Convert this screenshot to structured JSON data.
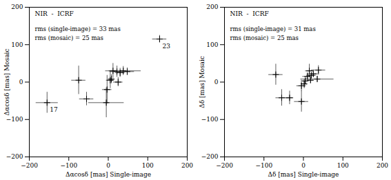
{
  "chart_data": [
    {
      "type": "scatter",
      "title": "NIR  -  ICRF",
      "annotations": [
        "rms (single-image) = 33 mas",
        "rms (mosaic) = 25 mas"
      ],
      "xlabel": "Δαcosδ [mas] Single-image",
      "ylabel": "Δαcosδ [mas] Mosaic",
      "xlim": [
        -200,
        200
      ],
      "ylim": [
        -200,
        200
      ],
      "xticks": [
        -200,
        -100,
        0,
        100,
        200
      ],
      "yticks": [
        -200,
        -100,
        0,
        100,
        200
      ],
      "x": [
        -155,
        130,
        -75,
        -55,
        -5,
        -3,
        5,
        12,
        22,
        30,
        38,
        48,
        25,
        8
      ],
      "y": [
        -55,
        115,
        5,
        -45,
        -55,
        -20,
        5,
        30,
        28,
        25,
        30,
        28,
        0,
        8
      ],
      "xerr": [
        28,
        18,
        18,
        18,
        45,
        12,
        10,
        10,
        18,
        12,
        45,
        18,
        12,
        8
      ],
      "yerr": [
        28,
        10,
        38,
        18,
        40,
        38,
        22,
        20,
        15,
        12,
        12,
        10,
        12,
        12
      ],
      "labels": [
        "17",
        "23",
        null,
        null,
        null,
        null,
        null,
        null,
        null,
        null,
        null,
        null,
        null,
        null
      ],
      "color": "#000000"
    },
    {
      "type": "scatter",
      "title": "NIR  -  ICRF",
      "annotations": [
        "rms (single-image) = 31 mas",
        "rms (mosaic) = 25 mas"
      ],
      "xlabel": "Δδ [mas] Single-image",
      "ylabel": "Δδ [mas] Mosaic",
      "xlim": [
        -200,
        200
      ],
      "ylim": [
        -200,
        200
      ],
      "xticks": [
        -200,
        -100,
        0,
        100,
        200
      ],
      "yticks": [
        -200,
        -100,
        0,
        100,
        200
      ],
      "x": [
        -70,
        -55,
        -35,
        -5,
        -5,
        2,
        5,
        10,
        15,
        20,
        25,
        35,
        38,
        18
      ],
      "y": [
        20,
        -42,
        -42,
        -52,
        -10,
        -5,
        3,
        15,
        30,
        18,
        22,
        8,
        32,
        5
      ],
      "xerr": [
        18,
        15,
        10,
        18,
        12,
        8,
        8,
        12,
        10,
        12,
        15,
        42,
        18,
        8
      ],
      "yerr": [
        28,
        22,
        18,
        28,
        15,
        12,
        10,
        10,
        18,
        8,
        10,
        8,
        12,
        8
      ],
      "labels": [
        null,
        null,
        null,
        null,
        null,
        null,
        null,
        null,
        null,
        null,
        null,
        null,
        null,
        null
      ],
      "color": "#000000"
    }
  ]
}
